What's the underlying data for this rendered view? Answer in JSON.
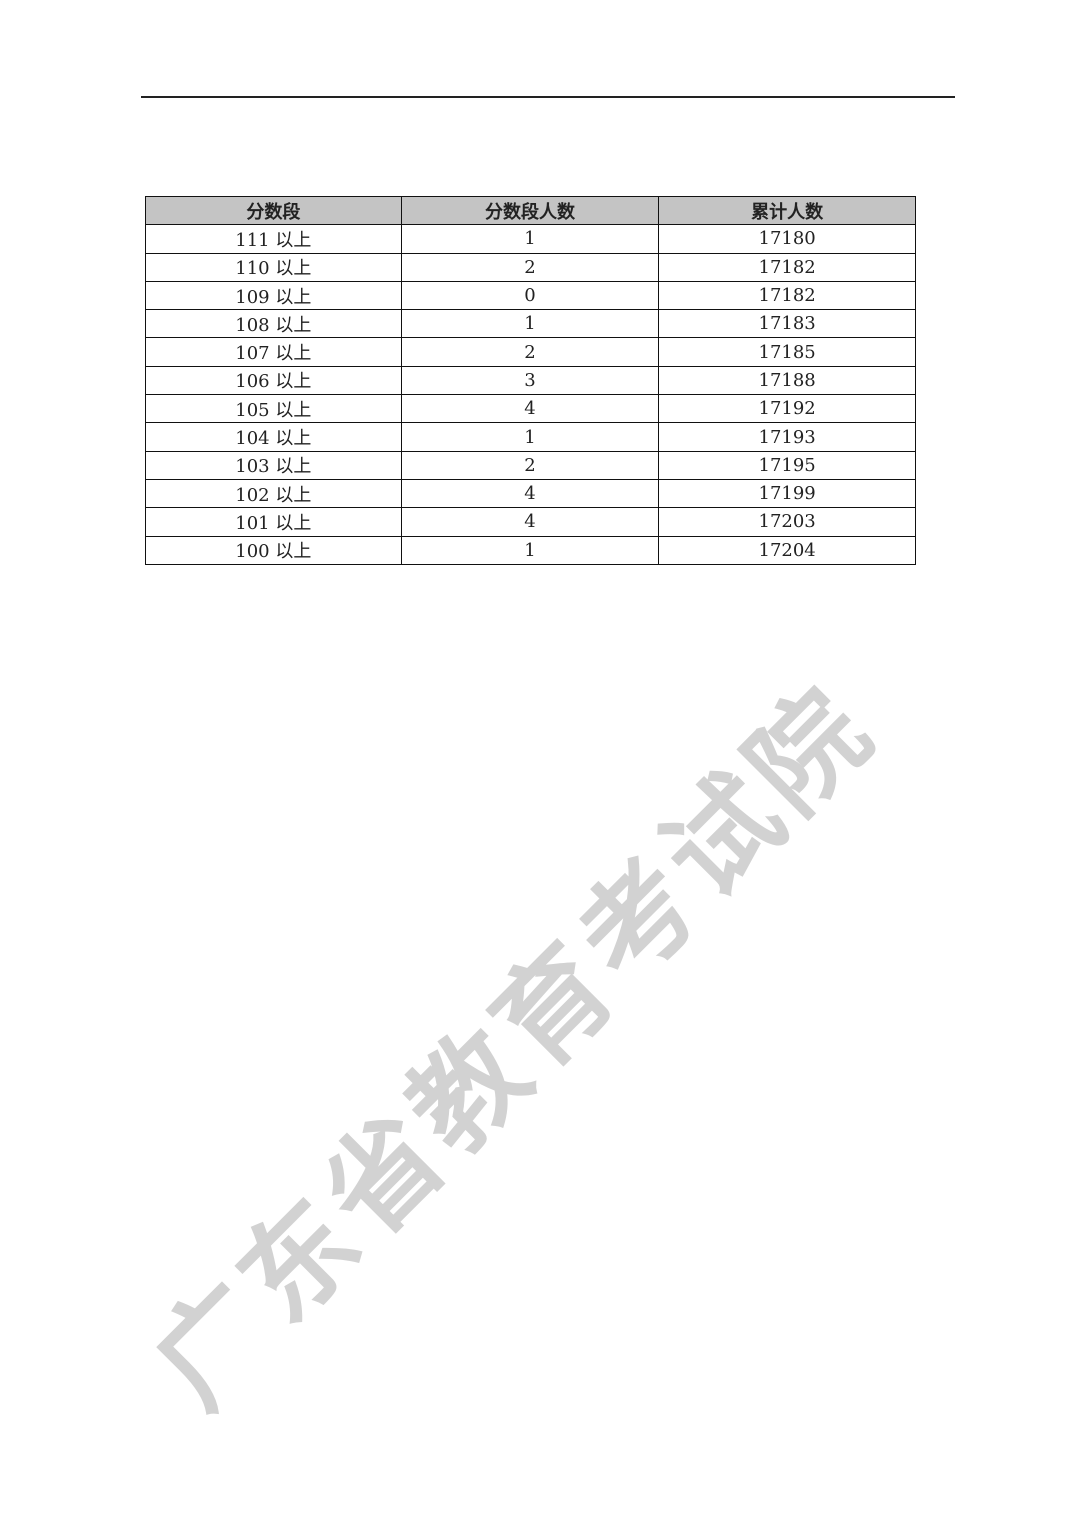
{
  "table": {
    "headers": [
      "分数段",
      "分数段人数",
      "累计人数"
    ],
    "rows": [
      [
        "111 以上",
        "1",
        "17180"
      ],
      [
        "110 以上",
        "2",
        "17182"
      ],
      [
        "109 以上",
        "0",
        "17182"
      ],
      [
        "108 以上",
        "1",
        "17183"
      ],
      [
        "107 以上",
        "2",
        "17185"
      ],
      [
        "106 以上",
        "3",
        "17188"
      ],
      [
        "105 以上",
        "4",
        "17192"
      ],
      [
        "104 以上",
        "1",
        "17193"
      ],
      [
        "103 以上",
        "2",
        "17195"
      ],
      [
        "102 以上",
        "4",
        "17199"
      ],
      [
        "101 以上",
        "4",
        "17203"
      ],
      [
        "100 以上",
        "1",
        "17204"
      ]
    ]
  },
  "watermark": "广东省教育考试院",
  "colors": {
    "header_bg": "#c4c4c4",
    "watermark": "#c8c8c8"
  }
}
